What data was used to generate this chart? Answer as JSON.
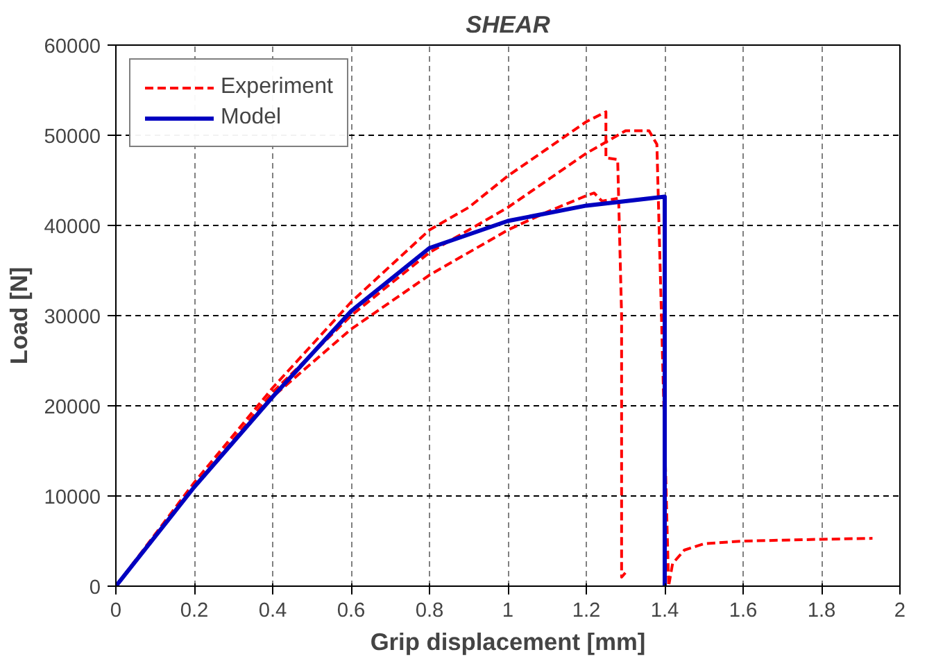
{
  "chart_data": {
    "type": "line",
    "title": "SHEAR",
    "xlabel": "Grip displacement [mm]",
    "ylabel": "Load [N]",
    "xlim": [
      0,
      2
    ],
    "ylim": [
      0,
      60000
    ],
    "xticks": [
      0,
      0.2,
      0.4,
      0.6,
      0.8,
      1,
      1.2,
      1.4,
      1.6,
      1.8,
      2
    ],
    "yticks": [
      0,
      10000,
      20000,
      30000,
      40000,
      50000,
      60000
    ],
    "grid": true,
    "legend": "top left",
    "marker": "none",
    "series": [
      {
        "name": "Experiment",
        "color": "#ff0000",
        "line_style": "dashed",
        "x": [
          0,
          0.2,
          0.4,
          0.6,
          0.8,
          0.9,
          1.0,
          1.1,
          1.2,
          1.25,
          1.25,
          1.28,
          1.29,
          1.29,
          1.3
        ],
        "values": [
          0,
          11500,
          22000,
          31500,
          39500,
          42000,
          45500,
          48500,
          51500,
          52600,
          47500,
          47300,
          30000,
          1000,
          1500
        ]
      },
      {
        "color": "#ff0000",
        "line_style": "dashed",
        "x": [
          0,
          0.2,
          0.4,
          0.6,
          0.8,
          1.0,
          1.1,
          1.2,
          1.3,
          1.36,
          1.38,
          1.41,
          1.42,
          1.45,
          1.5,
          1.6,
          1.8,
          1.93
        ],
        "values": [
          0,
          11000,
          21500,
          30000,
          37000,
          42000,
          45000,
          48000,
          50500,
          50500,
          49000,
          0,
          2500,
          4000,
          4700,
          5000,
          5200,
          5300
        ]
      },
      {
        "color": "#ff0000",
        "line_style": "dashed",
        "x": [
          0,
          0.2,
          0.4,
          0.6,
          0.8,
          1.0,
          1.1,
          1.2,
          1.22,
          1.24,
          1.28
        ],
        "values": [
          0,
          11000,
          21000,
          28500,
          34500,
          39500,
          41500,
          43300,
          43600,
          42700,
          43000
        ]
      },
      {
        "name": "Model",
        "color": "#0000c0",
        "line_style": "solid",
        "x": [
          0,
          0.2,
          0.4,
          0.6,
          0.8,
          1.0,
          1.2,
          1.4,
          1.4
        ],
        "values": [
          0,
          11000,
          21000,
          30500,
          37500,
          40500,
          42200,
          43200,
          0
        ]
      }
    ]
  }
}
